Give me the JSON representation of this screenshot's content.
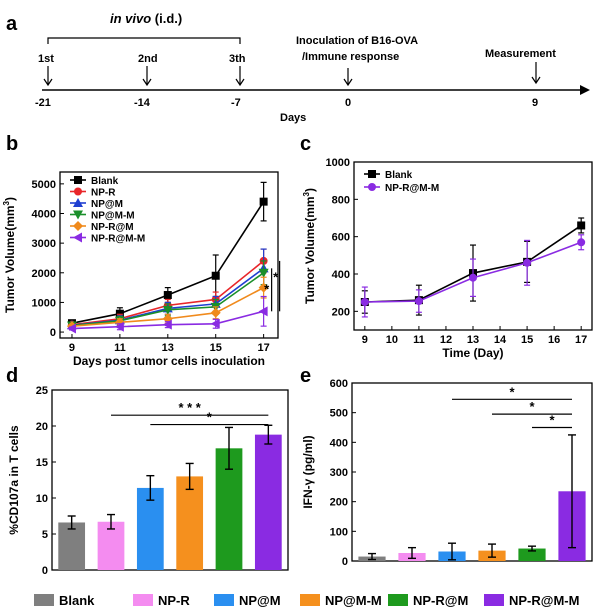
{
  "panels": {
    "a": {
      "label": "a",
      "title": "in vivo (i.d.)",
      "doses": [
        "1st",
        "2nd",
        "3th"
      ],
      "events": [
        "Inoculation of B16-OVA",
        "/Immune response",
        "Measurement"
      ],
      "ticks": [
        -21,
        -14,
        -7,
        0,
        9
      ],
      "xlabel": "Days"
    },
    "b": {
      "label": "b"
    },
    "c": {
      "label": "c"
    },
    "d": {
      "label": "d"
    },
    "e": {
      "label": "e"
    }
  },
  "colors": {
    "Blank": "#000000",
    "NP-R": "#e8262a",
    "NP@M": "#1f3fd1",
    "NP@M-M": "#1a8f2a",
    "NP-R@M": "#f08a1c",
    "NP-R@M-M": "#8a2be2"
  },
  "bar_colors": {
    "Blank": "#7f7f7f",
    "NP-R": "#f48cf0",
    "NP@M": "#2a8ff0",
    "NP@M-M": "#f5901e",
    "NP-R@M": "#1e9a1e",
    "NP-R@M-M": "#8a2be2"
  },
  "bottom_legend": [
    "Blank",
    "NP-R",
    "NP@M",
    "NP@M-M",
    "NP-R@M",
    "NP-R@M-M"
  ],
  "chart_data": [
    {
      "id": "b",
      "type": "line",
      "xlabel": "Days post tumor cells inoculation",
      "ylabel": "Tumor Volume(mm³)",
      "ylabel_main": "Tumor Volume(mm",
      "ylabel_sup": "3",
      "ylabel_end": ")",
      "x": [
        9,
        11,
        13,
        15,
        17
      ],
      "xlim": [
        8.5,
        17.6
      ],
      "ylim": [
        -200,
        5400
      ],
      "yticks": [
        0,
        1000,
        2000,
        3000,
        4000,
        5000
      ],
      "legend": "top-left",
      "series": [
        {
          "name": "Blank",
          "marker": "square",
          "values": [
            300,
            620,
            1250,
            1900,
            4400
          ],
          "errors": [
            80,
            200,
            250,
            700,
            650
          ]
        },
        {
          "name": "NP-R",
          "marker": "circle",
          "values": [
            250,
            450,
            900,
            1100,
            2400
          ],
          "errors": [
            60,
            150,
            200,
            250,
            400
          ]
        },
        {
          "name": "NP@M",
          "marker": "triangle",
          "values": [
            230,
            400,
            800,
            950,
            2150
          ],
          "errors": [
            60,
            150,
            200,
            250,
            650
          ]
        },
        {
          "name": "NP@M-M",
          "marker": "tri-down",
          "values": [
            220,
            380,
            750,
            850,
            2000
          ],
          "errors": [
            60,
            150,
            200,
            250,
            400
          ]
        },
        {
          "name": "NP-R@M",
          "marker": "diamond",
          "values": [
            200,
            330,
            450,
            650,
            1500
          ],
          "errors": [
            60,
            120,
            150,
            200,
            350
          ]
        },
        {
          "name": "NP-R@M-M",
          "marker": "tri-left",
          "values": [
            120,
            180,
            250,
            280,
            700
          ],
          "errors": [
            50,
            100,
            100,
            150,
            500
          ]
        }
      ],
      "annotations": [
        "*",
        "*"
      ]
    },
    {
      "id": "c",
      "type": "line",
      "xlabel": "Time (Day)",
      "ylabel": "Tumor Volume(mm³)",
      "ylabel_main": "Tumor Volume(mm",
      "ylabel_sup": "3",
      "ylabel_end": ")",
      "x": [
        9,
        11,
        13,
        15,
        17
      ],
      "xlim": [
        8.6,
        17.4
      ],
      "ylim": [
        100,
        1000
      ],
      "xticks": [
        9,
        10,
        11,
        12,
        13,
        14,
        15,
        16,
        17
      ],
      "yticks": [
        200,
        400,
        600,
        800,
        1000
      ],
      "legend": "top-left",
      "series": [
        {
          "name": "Blank",
          "marker": "square",
          "values": [
            250,
            260,
            405,
            465,
            660
          ],
          "errors": [
            60,
            80,
            150,
            110,
            40
          ]
        },
        {
          "name": "NP-R@M-M",
          "marker": "circle",
          "values": [
            250,
            255,
            380,
            460,
            570
          ],
          "errors": [
            80,
            60,
            100,
            120,
            40
          ]
        }
      ]
    },
    {
      "id": "d",
      "type": "bar",
      "ylabel": "%CD107a in T cells",
      "categories": [
        "Blank",
        "NP-R",
        "NP@M",
        "NP@M-M",
        "NP-R@M",
        "NP-R@M-M"
      ],
      "values": [
        6.6,
        6.7,
        11.4,
        13.0,
        16.9,
        18.8
      ],
      "errors": [
        0.9,
        1.0,
        1.7,
        1.8,
        2.9,
        1.3
      ],
      "ylim": [
        0,
        25
      ],
      "yticks": [
        0,
        5,
        10,
        15,
        20,
        25
      ],
      "annotations": [
        "* * *",
        "*"
      ]
    },
    {
      "id": "e",
      "type": "bar",
      "ylabel": "IFN-γ (pg/ml)",
      "categories": [
        "Blank",
        "NP-R",
        "NP@M",
        "NP@M-M",
        "NP-R@M",
        "NP-R@M-M"
      ],
      "values": [
        15,
        27,
        32,
        35,
        42,
        235
      ],
      "errors": [
        10,
        18,
        28,
        22,
        8,
        190
      ],
      "ylim": [
        0,
        600
      ],
      "yticks": [
        0,
        100,
        200,
        300,
        400,
        500,
        600
      ],
      "annotations": [
        "*",
        "*",
        "*"
      ]
    }
  ]
}
